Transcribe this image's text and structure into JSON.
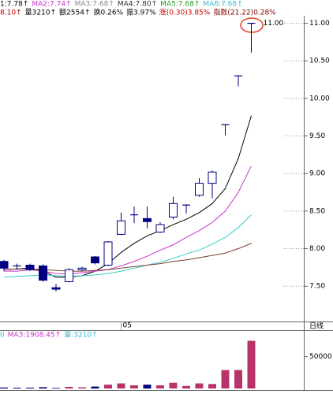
{
  "chart_data": [
    {
      "type": "candlestick",
      "header_lines": [
        [
          {
            "text": "1:7.78↑",
            "color": "#000000"
          },
          {
            "text": "MA2:7.74↑",
            "color": "#cc33cc"
          },
          {
            "text": "MA3:7.68↑",
            "color": "#888888"
          },
          {
            "text": "MA4:7.80↑",
            "color": "#333333"
          },
          {
            "text": "MA5:7.68↑",
            "color": "#229922"
          },
          {
            "text": "MA6:7.68↑",
            "color": "#33bbcc"
          }
        ],
        [
          {
            "text": "8.10↑",
            "color": "#c00000"
          },
          {
            "text": "量3210↑",
            "color": "#000000"
          },
          {
            "text": "额2554↑",
            "color": "#000000"
          },
          {
            "text": "换0.26%",
            "color": "#000000"
          },
          {
            "text": "振3.97%",
            "color": "#000000"
          },
          {
            "text": "涨(0.30)3.85%",
            "color": "#c00000"
          },
          {
            "text": "指数(21.22)0.28%",
            "color": "#800000"
          }
        ]
      ],
      "categories": [
        null,
        null,
        null,
        null,
        null,
        null,
        null,
        null,
        null,
        "05",
        null,
        null,
        null,
        null,
        null,
        null,
        null,
        null,
        null,
        null
      ],
      "open": [
        7.83,
        7.77,
        7.78,
        7.77,
        7.48,
        7.56,
        7.72,
        7.89,
        7.78,
        8.19,
        8.44,
        8.4,
        8.22,
        8.42,
        8.58,
        8.71,
        8.87,
        9.65,
        10.3,
        11.0
      ],
      "high": [
        7.85,
        7.8,
        7.8,
        7.79,
        7.53,
        7.74,
        7.76,
        7.9,
        8.1,
        8.48,
        8.56,
        8.56,
        8.35,
        8.69,
        8.59,
        8.94,
        9.04,
        9.65,
        10.3,
        11.0
      ],
      "low": [
        7.7,
        7.72,
        7.7,
        7.56,
        7.43,
        7.55,
        7.7,
        7.79,
        7.77,
        8.18,
        8.34,
        8.27,
        8.21,
        8.39,
        8.47,
        8.69,
        8.67,
        9.51,
        10.16,
        10.61
      ],
      "close": [
        7.74,
        7.76,
        7.72,
        7.58,
        7.46,
        7.72,
        7.74,
        7.81,
        8.09,
        8.37,
        8.45,
        8.36,
        8.32,
        8.6,
        8.58,
        8.87,
        9.02,
        9.65,
        10.3,
        11.0
      ],
      "up_color": "#000080",
      "down_color": "#000080",
      "series": [
        {
          "color": "#000000",
          "values": [
            7.72,
            7.73,
            7.74,
            7.7,
            7.62,
            7.62,
            7.64,
            7.7,
            7.8,
            7.95,
            8.07,
            8.17,
            8.24,
            8.32,
            8.39,
            8.48,
            8.6,
            8.8,
            9.2,
            9.77
          ]
        },
        {
          "color": "#cc33cc",
          "values": [
            7.7,
            7.7,
            7.72,
            7.7,
            7.67,
            7.66,
            7.68,
            7.7,
            7.72,
            7.77,
            7.83,
            7.9,
            7.98,
            8.05,
            8.15,
            8.24,
            8.35,
            8.5,
            8.75,
            9.1
          ]
        },
        {
          "color": "#33cccc",
          "values": [
            7.62,
            7.63,
            7.64,
            7.65,
            7.64,
            7.63,
            7.64,
            7.65,
            7.67,
            7.7,
            7.74,
            7.78,
            7.82,
            7.87,
            7.93,
            7.98,
            8.06,
            8.15,
            8.28,
            8.45
          ]
        },
        {
          "color": "#7a3b2e",
          "values": [
            7.72,
            7.73,
            7.73,
            7.72,
            7.71,
            7.7,
            7.7,
            7.71,
            7.72,
            7.74,
            7.76,
            7.78,
            7.8,
            7.83,
            7.85,
            7.88,
            7.91,
            7.94,
            8.0,
            8.07
          ]
        }
      ],
      "high_label": "11.00",
      "period_label": "日线",
      "ylim": [
        7.03,
        11.1
      ],
      "yticks": [
        {
          "value": 7.5,
          "label": "7.50"
        },
        {
          "value": 8,
          "label": "8.00"
        },
        {
          "value": 8.5,
          "label": "8.50"
        },
        {
          "value": 9,
          "label": "9.00"
        },
        {
          "value": 9.5,
          "label": "9.50"
        },
        {
          "value": 10,
          "label": "10.00"
        },
        {
          "value": 10.5,
          "label": "10.50"
        },
        {
          "value": 11,
          "label": "11.00"
        }
      ]
    },
    {
      "type": "volume",
      "header_items": [
        {
          "text": "0",
          "color": "#33bbcc"
        },
        {
          "text": "MA3:1908.45↑",
          "color": "#cc33cc"
        },
        {
          "text": "量:3210↑",
          "color": "#33bbcc"
        }
      ],
      "values": [
        1500,
        1200,
        1300,
        2000,
        1000,
        2500,
        1800,
        3000,
        6000,
        8000,
        5000,
        6000,
        5000,
        9000,
        4000,
        8000,
        7000,
        29000,
        29000,
        75000
      ],
      "up_color": "#b8336a",
      "down_color": "#000080",
      "ylim": [
        0,
        88000
      ],
      "yticks": [
        50000
      ]
    }
  ]
}
